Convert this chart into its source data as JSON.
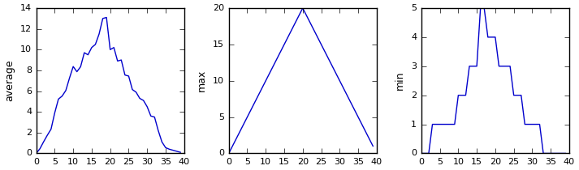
{
  "avg_x": [
    0,
    1,
    2,
    3,
    4,
    5,
    6,
    7,
    8,
    9,
    10,
    11,
    12,
    13,
    14,
    15,
    16,
    17,
    18,
    19,
    20,
    21,
    22,
    23,
    24,
    25,
    26,
    27,
    28,
    29,
    30,
    31,
    32,
    33,
    34,
    35,
    36,
    37,
    38,
    39
  ],
  "avg_y": [
    0.0,
    0.45,
    1.12,
    1.75,
    2.33,
    3.9,
    5.23,
    5.52,
    6.06,
    7.26,
    8.37,
    7.87,
    8.35,
    9.7,
    9.5,
    10.2,
    10.5,
    11.5,
    13.0,
    13.1,
    10.0,
    10.2,
    8.9,
    9.0,
    7.55,
    7.45,
    6.15,
    5.9,
    5.3,
    5.1,
    4.5,
    3.6,
    3.5,
    2.2,
    1.1,
    0.55,
    0.4,
    0.3,
    0.2,
    0.1
  ],
  "max_x": [
    0,
    1,
    2,
    3,
    4,
    5,
    6,
    7,
    8,
    9,
    10,
    11,
    12,
    13,
    14,
    15,
    16,
    17,
    18,
    19,
    20,
    21,
    22,
    23,
    24,
    25,
    26,
    27,
    28,
    29,
    30,
    31,
    32,
    33,
    34,
    35,
    36,
    37,
    38,
    39
  ],
  "max_y": [
    0,
    1,
    2,
    3,
    4,
    5,
    6,
    7,
    8,
    9,
    10,
    11,
    12,
    13,
    14,
    15,
    16,
    17,
    18,
    19,
    20,
    19,
    18,
    17,
    16,
    15,
    14,
    13,
    12,
    11,
    10,
    9,
    8,
    7,
    6,
    5,
    4,
    3,
    2,
    1
  ],
  "min_x": [
    0,
    1,
    2,
    3,
    4,
    5,
    6,
    7,
    8,
    9,
    10,
    11,
    12,
    13,
    14,
    15,
    16,
    17,
    18,
    19,
    20,
    21,
    22,
    23,
    24,
    25,
    26,
    27,
    28,
    29,
    30,
    31,
    32,
    33,
    34,
    35,
    36,
    37,
    38,
    39
  ],
  "min_y": [
    0,
    0,
    0,
    1,
    1,
    1,
    1,
    1,
    1,
    1,
    2,
    2,
    2,
    3,
    3,
    3,
    5,
    5,
    4,
    4,
    4,
    3,
    3,
    3,
    3,
    2,
    2,
    2,
    1,
    1,
    1,
    1,
    1,
    0,
    0,
    0,
    0,
    0,
    0,
    0
  ],
  "line_color": "#0000cc",
  "bg_color": "#ffffff",
  "ylim_avg": [
    0,
    14
  ],
  "ylim_max": [
    0,
    20
  ],
  "ylim_min": [
    0,
    5
  ],
  "ylabel_avg": "average",
  "ylabel_max": "max",
  "ylabel_min": "min",
  "yticks_avg": [
    0,
    2,
    4,
    6,
    8,
    10,
    12,
    14
  ],
  "yticks_max": [
    0,
    5,
    10,
    15,
    20
  ],
  "yticks_min": [
    0,
    1,
    2,
    3,
    4,
    5
  ],
  "xticks": [
    0,
    5,
    10,
    15,
    20,
    25,
    30,
    35,
    40
  ],
  "xlim": [
    0,
    40
  ],
  "tick_fontsize": 8,
  "ylabel_fontsize": 9
}
